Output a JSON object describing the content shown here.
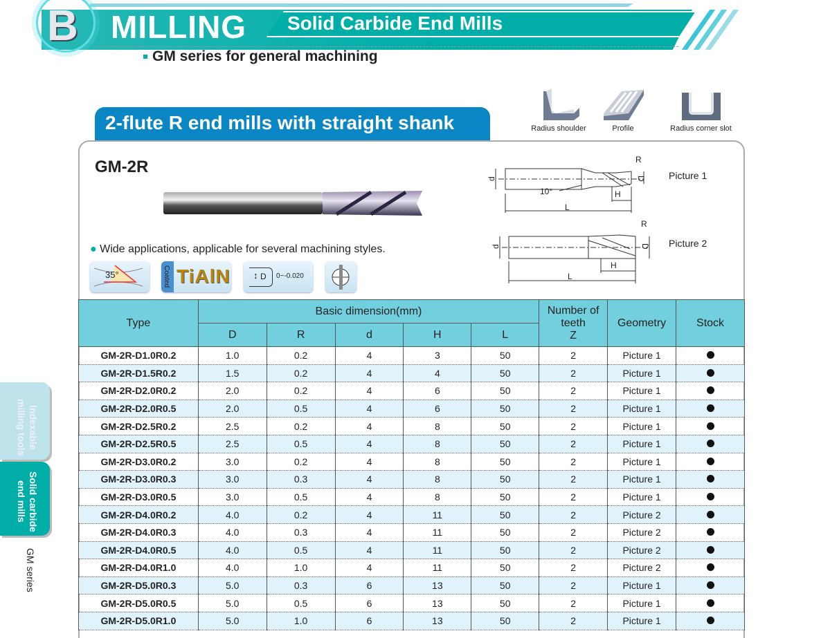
{
  "header": {
    "letter": "B",
    "title": "MILLING",
    "subtitle": "Solid Carbide End Mills",
    "series": "GM series for general machining"
  },
  "section_title": "2-flute R end mills with straight shank",
  "applications": [
    {
      "label": "Radius shoulder",
      "icon": "radius-shoulder-icon"
    },
    {
      "label": "Profile",
      "icon": "profile-icon"
    },
    {
      "label": "Radius corner slot",
      "icon": "radius-corner-slot-icon"
    }
  ],
  "product": {
    "model": "GM-2R",
    "feature": "Wide applications, applicable for several machining styles."
  },
  "badges": {
    "helix": "35°",
    "coated": "Coated",
    "coating": "TiAlN",
    "tol_symbol": "D",
    "tolerance": "0~-0.020"
  },
  "drawings": {
    "pic1": "Picture 1",
    "pic2": "Picture 2",
    "angle": "10°",
    "labels": {
      "R": "R",
      "D": "D",
      "d": "d",
      "H": "H",
      "L": "L"
    }
  },
  "side_tabs": {
    "tab1": "Indexable milling tools",
    "tab2": "Solid carbide end mills",
    "series": "GM series"
  },
  "table": {
    "headers": {
      "type": "Type",
      "basic": "Basic dimension(mm)",
      "D": "D",
      "R": "R",
      "d": "d",
      "H": "H",
      "L": "L",
      "teeth": "Number of teeth",
      "Z": "Z",
      "geometry": "Geometry",
      "stock": "Stock"
    },
    "rows": [
      [
        "GM-2R-D1.0R0.2",
        "1.0",
        "0.2",
        "4",
        "3",
        "50",
        "2",
        "Picture 1"
      ],
      [
        "GM-2R-D1.5R0.2",
        "1.5",
        "0.2",
        "4",
        "4",
        "50",
        "2",
        "Picture 1"
      ],
      [
        "GM-2R-D2.0R0.2",
        "2.0",
        "0.2",
        "4",
        "6",
        "50",
        "2",
        "Picture 1"
      ],
      [
        "GM-2R-D2.0R0.5",
        "2.0",
        "0.5",
        "4",
        "6",
        "50",
        "2",
        "Picture 1"
      ],
      [
        "GM-2R-D2.5R0.2",
        "2.5",
        "0.2",
        "4",
        "8",
        "50",
        "2",
        "Picture 1"
      ],
      [
        "GM-2R-D2.5R0.5",
        "2.5",
        "0.5",
        "4",
        "8",
        "50",
        "2",
        "Picture 1"
      ],
      [
        "GM-2R-D3.0R0.2",
        "3.0",
        "0.2",
        "4",
        "8",
        "50",
        "2",
        "Picture 1"
      ],
      [
        "GM-2R-D3.0R0.3",
        "3.0",
        "0.3",
        "4",
        "8",
        "50",
        "2",
        "Picture 1"
      ],
      [
        "GM-2R-D3.0R0.5",
        "3.0",
        "0.5",
        "4",
        "8",
        "50",
        "2",
        "Picture 1"
      ],
      [
        "GM-2R-D4.0R0.2",
        "4.0",
        "0.2",
        "4",
        "11",
        "50",
        "2",
        "Picture 2"
      ],
      [
        "GM-2R-D4.0R0.3",
        "4.0",
        "0.3",
        "4",
        "11",
        "50",
        "2",
        "Picture 2"
      ],
      [
        "GM-2R-D4.0R0.5",
        "4.0",
        "0.5",
        "4",
        "11",
        "50",
        "2",
        "Picture 2"
      ],
      [
        "GM-2R-D4.0R1.0",
        "4.0",
        "1.0",
        "4",
        "11",
        "50",
        "2",
        "Picture 2"
      ],
      [
        "GM-2R-D5.0R0.3",
        "5.0",
        "0.3",
        "6",
        "13",
        "50",
        "2",
        "Picture 1"
      ],
      [
        "GM-2R-D5.0R0.5",
        "5.0",
        "0.5",
        "6",
        "13",
        "50",
        "2",
        "Picture 1"
      ],
      [
        "GM-2R-D5.0R1.0",
        "5.0",
        "1.0",
        "6",
        "13",
        "50",
        "2",
        "Picture 1"
      ]
    ],
    "stock_marker": "in-stock-dot"
  },
  "colors": {
    "teal": "#00aea8",
    "blue": "#0a86c4",
    "header_bg": "#72cfdd",
    "alt_row": "#e0f3fa"
  }
}
